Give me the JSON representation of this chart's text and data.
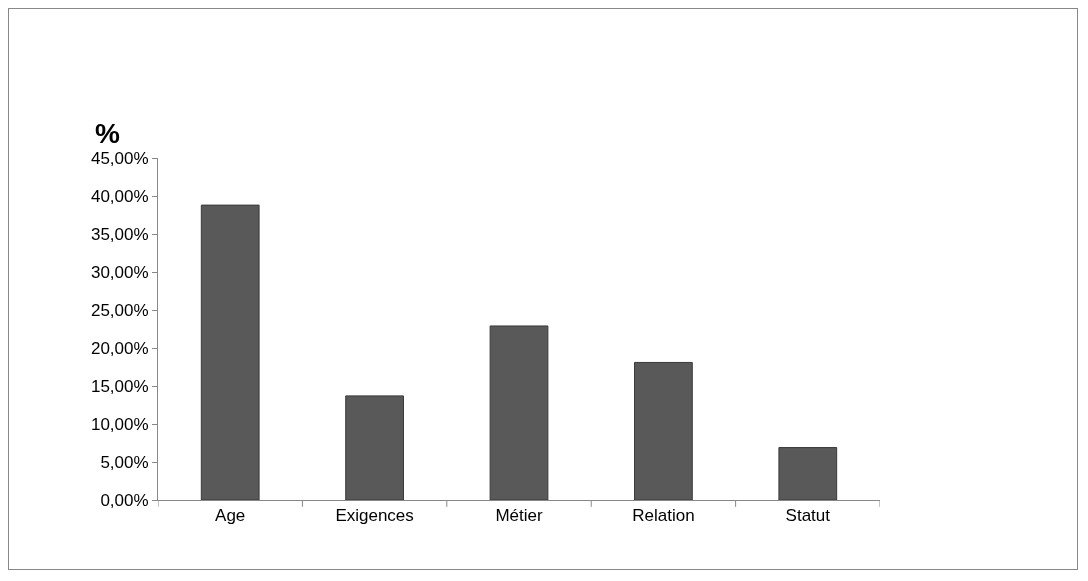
{
  "chart_data": {
    "type": "bar",
    "ylabel": "%",
    "categories": [
      "Age",
      "Exigences",
      "Métier",
      "Relation",
      "Statut"
    ],
    "values": [
      38.8,
      13.7,
      22.9,
      18.1,
      6.9
    ],
    "color": "#595959",
    "ylim": [
      0,
      45
    ],
    "yticks": [
      {
        "value": 0,
        "label": "0,00%"
      },
      {
        "value": 5,
        "label": "5,00%"
      },
      {
        "value": 10,
        "label": "10,00%"
      },
      {
        "value": 15,
        "label": "15,00%"
      },
      {
        "value": 20,
        "label": "20,00%"
      },
      {
        "value": 25,
        "label": "25,00%"
      },
      {
        "value": 30,
        "label": "30,00%"
      },
      {
        "value": 35,
        "label": "35,00%"
      },
      {
        "value": 40,
        "label": "40,00%"
      },
      {
        "value": 45,
        "label": "45,00%"
      }
    ],
    "grid": false
  }
}
